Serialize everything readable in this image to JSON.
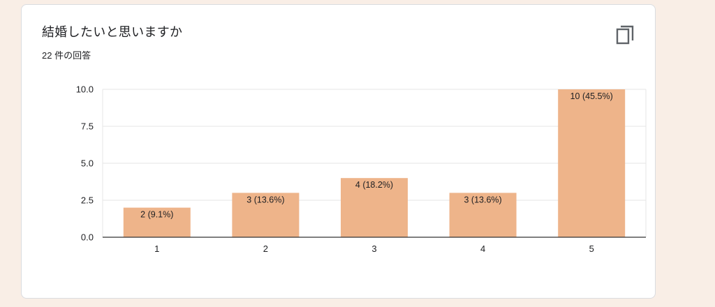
{
  "card": {
    "title": "結婚したいと思いますか",
    "response_count": "22 件の回答",
    "copy_icon": "copy-icon"
  },
  "colors": {
    "bar": "#eeb48a",
    "grid": "#e6e6e6",
    "axis": "#333333",
    "text": "#202124"
  },
  "chart_data": {
    "type": "bar",
    "categories": [
      "1",
      "2",
      "3",
      "4",
      "5"
    ],
    "values": [
      2,
      3,
      4,
      3,
      10
    ],
    "data_labels": [
      "2 (9.1%)",
      "3 (13.6%)",
      "4 (18.2%)",
      "3 (13.6%)",
      "10 (45.5%)"
    ],
    "ylim": [
      0,
      10
    ],
    "yticks": [
      "0.0",
      "2.5",
      "5.0",
      "7.5",
      "10.0"
    ],
    "ytick_values": [
      0,
      2.5,
      5,
      7.5,
      10
    ],
    "grid": true,
    "legend": "none"
  }
}
